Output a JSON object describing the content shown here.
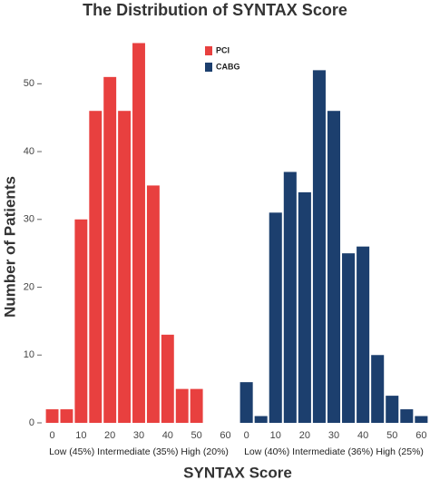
{
  "title": "The Distribution of SYNTAX Score",
  "y_label": "Number of Patients",
  "x_label": "SYNTAX Score",
  "chart_data": [
    {
      "type": "histogram",
      "subtitle": "Low (45%) Intermediate (35%) High (20%)",
      "bins": [
        -2.5,
        2.5,
        7.5,
        12.5,
        17.5,
        22.5,
        27.5,
        32.5,
        37.5,
        42.5,
        47.5,
        52.5
      ],
      "series": [
        {
          "name": "PCI",
          "color": "#e8403f",
          "values": [
            2,
            2,
            30,
            46,
            51,
            46,
            56,
            35,
            13,
            5,
            5
          ]
        }
      ],
      "xlim": [
        -3,
        63
      ],
      "xticks": [
        0,
        10,
        20,
        30,
        40,
        50,
        60
      ],
      "ylim": [
        0,
        57
      ],
      "yticks": [
        0,
        10,
        20,
        30,
        40,
        50
      ],
      "legend": "top-right"
    },
    {
      "type": "histogram",
      "subtitle": "Low (40%) Intermediate (36%) High (25%)",
      "bins": [
        -2.5,
        2.5,
        7.5,
        12.5,
        17.5,
        22.5,
        27.5,
        32.5,
        37.5,
        42.5,
        47.5,
        52.5,
        57.5,
        62.5
      ],
      "series": [
        {
          "name": "CABG",
          "color": "#1c3f6e",
          "values": [
            6,
            1,
            31,
            37,
            34,
            52,
            46,
            25,
            26,
            10,
            4,
            2,
            1
          ]
        }
      ],
      "xlim": [
        -3,
        63
      ],
      "xticks": [
        0,
        10,
        20,
        30,
        40,
        50,
        60
      ],
      "ylim": [
        0,
        57
      ]
    }
  ]
}
